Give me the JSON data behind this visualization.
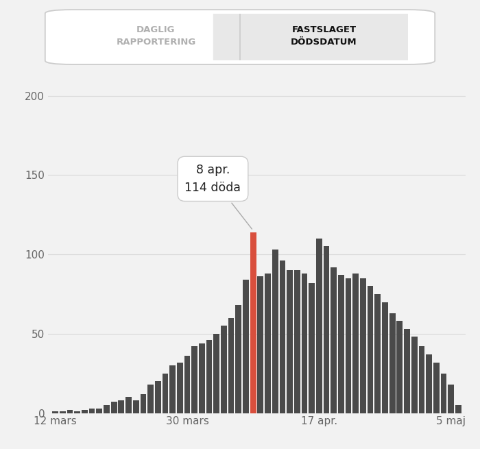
{
  "title_left": "DAGLIG\nRAPPORTERING",
  "title_right": "FASTSLAGET\nDÖDSDATUM",
  "bar_color": "#4a4a4a",
  "highlight_color": "#d94f3d",
  "highlight_index": 27,
  "tooltip_text": "8 apr.\n114 döda",
  "yticks": [
    0,
    50,
    100,
    150,
    200
  ],
  "xtick_labels": [
    "12 mars",
    "30 mars",
    "17 apr.",
    "5 maj"
  ],
  "xtick_positions": [
    0,
    18,
    36,
    54
  ],
  "background_color": "#f2f2f2",
  "values": [
    1,
    1,
    2,
    1,
    2,
    3,
    3,
    5,
    7,
    8,
    10,
    8,
    12,
    18,
    20,
    25,
    30,
    32,
    36,
    42,
    44,
    46,
    50,
    55,
    60,
    68,
    84,
    114,
    86,
    88,
    103,
    96,
    90,
    90,
    88,
    82,
    110,
    105,
    92,
    87,
    85,
    88,
    85,
    80,
    75,
    70,
    63,
    58,
    53,
    48,
    42,
    37,
    32,
    25,
    18,
    5
  ]
}
